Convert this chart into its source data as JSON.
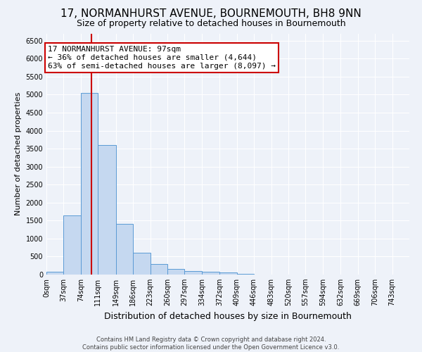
{
  "title": "17, NORMANHURST AVENUE, BOURNEMOUTH, BH8 9NN",
  "subtitle": "Size of property relative to detached houses in Bournemouth",
  "xlabel": "Distribution of detached houses by size in Bournemouth",
  "ylabel": "Number of detached properties",
  "footer_line1": "Contains HM Land Registry data © Crown copyright and database right 2024.",
  "footer_line2": "Contains public sector information licensed under the Open Government Licence v3.0.",
  "bin_labels": [
    "0sqm",
    "37sqm",
    "74sqm",
    "111sqm",
    "149sqm",
    "186sqm",
    "223sqm",
    "260sqm",
    "297sqm",
    "334sqm",
    "372sqm",
    "409sqm",
    "446sqm",
    "483sqm",
    "520sqm",
    "557sqm",
    "594sqm",
    "632sqm",
    "669sqm",
    "706sqm",
    "743sqm"
  ],
  "bin_edges": [
    0,
    37,
    74,
    111,
    149,
    186,
    223,
    260,
    297,
    334,
    372,
    409,
    446,
    483,
    520,
    557,
    594,
    632,
    669,
    706,
    743,
    780
  ],
  "bar_values": [
    75,
    1650,
    5050,
    3600,
    1400,
    600,
    300,
    150,
    100,
    75,
    50,
    25,
    0,
    0,
    0,
    0,
    0,
    0,
    0,
    0,
    0
  ],
  "bar_color": "#c5d8f0",
  "bar_edge_color": "#5b9bd5",
  "property_size": 97,
  "vline_color": "#cc0000",
  "annotation_line1": "17 NORMANHURST AVENUE: 97sqm",
  "annotation_line2": "← 36% of detached houses are smaller (4,644)",
  "annotation_line3": "63% of semi-detached houses are larger (8,097) →",
  "annotation_box_color": "white",
  "annotation_box_edge": "#cc0000",
  "ylim": [
    0,
    6700
  ],
  "yticks": [
    0,
    500,
    1000,
    1500,
    2000,
    2500,
    3000,
    3500,
    4000,
    4500,
    5000,
    5500,
    6000,
    6500
  ],
  "background_color": "#eef2f9",
  "axes_bg_color": "#eef2f9",
  "grid_color": "white",
  "title_fontsize": 11,
  "subtitle_fontsize": 9,
  "xlabel_fontsize": 9,
  "ylabel_fontsize": 8,
  "tick_fontsize": 7,
  "annotation_fontsize": 8,
  "footer_fontsize": 6
}
